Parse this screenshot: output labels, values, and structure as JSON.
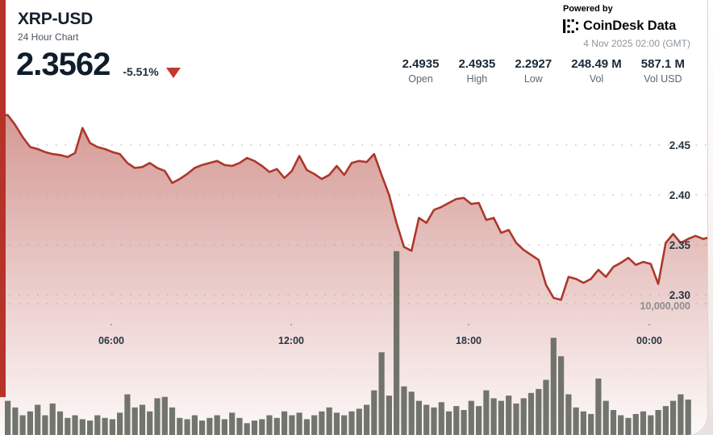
{
  "header": {
    "symbol": "XRP-USD",
    "subtitle": "24 Hour Chart",
    "price": "2.3562",
    "change_pct": "-5.51%",
    "direction": "down"
  },
  "branding": {
    "powered_by": "Powered by",
    "brand_name": "CoinDesk Data",
    "timestamp": "4 Nov 2025 02:00 (GMT)"
  },
  "stats": [
    {
      "value": "2.4935",
      "label": "Open"
    },
    {
      "value": "2.4935",
      "label": "High"
    },
    {
      "value": "2.2927",
      "label": "Low"
    },
    {
      "value": "248.49 M",
      "label": "Vol"
    },
    {
      "value": "587.1 M",
      "label": "Vol USD"
    }
  ],
  "chart_data": {
    "type": "area",
    "subtype": "price-line-with-volume-bars",
    "title": "XRP-USD 24 Hour Chart",
    "price_axis": {
      "tick_labels": [
        "2.45",
        "2.40",
        "2.35",
        "2.30"
      ],
      "tick_values": [
        2.45,
        2.4,
        2.35,
        2.3
      ],
      "side": "right",
      "ylim": [
        2.28,
        2.5
      ]
    },
    "volume_axis": {
      "gridline_label": "10,000,000",
      "gridline_value_m": 10
    },
    "time_ticks": [
      "06:00",
      "12:00",
      "18:00",
      "00:00"
    ],
    "grid": "dotted-horizontal",
    "interval_minutes": 15,
    "prices": [
      2.48,
      2.47,
      2.458,
      2.448,
      2.446,
      2.443,
      2.441,
      2.44,
      2.438,
      2.442,
      2.467,
      2.452,
      2.448,
      2.446,
      2.443,
      2.441,
      2.432,
      2.427,
      2.428,
      2.432,
      2.427,
      2.424,
      2.412,
      2.416,
      2.421,
      2.427,
      2.43,
      2.432,
      2.434,
      2.43,
      2.429,
      2.432,
      2.437,
      2.434,
      2.429,
      2.423,
      2.426,
      2.417,
      2.424,
      2.439,
      2.425,
      2.421,
      2.416,
      2.42,
      2.429,
      2.42,
      2.432,
      2.434,
      2.433,
      2.441,
      2.42,
      2.4,
      2.372,
      2.348,
      2.344,
      2.377,
      2.372,
      2.385,
      2.388,
      2.392,
      2.396,
      2.397,
      2.391,
      2.392,
      2.375,
      2.377,
      2.362,
      2.365,
      2.352,
      2.345,
      2.34,
      2.335,
      2.31,
      2.297,
      2.295,
      2.318,
      2.316,
      2.312,
      2.316,
      2.325,
      2.318,
      2.328,
      2.332,
      2.337,
      2.33,
      2.333,
      2.331,
      2.311,
      2.352,
      2.361,
      2.352,
      2.356,
      2.359,
      2.356,
      2.357
    ],
    "volumes_millions": [
      2.6,
      2.1,
      1.5,
      1.8,
      2.3,
      1.5,
      2.4,
      1.8,
      1.3,
      1.5,
      1.2,
      1.1,
      1.5,
      1.3,
      1.2,
      1.7,
      3.1,
      2.1,
      2.3,
      1.8,
      2.8,
      2.9,
      2.1,
      1.3,
      1.2,
      1.5,
      1.1,
      1.3,
      1.5,
      1.2,
      1.7,
      1.3,
      0.9,
      1.1,
      1.2,
      1.5,
      1.3,
      1.8,
      1.5,
      1.7,
      1.2,
      1.5,
      1.8,
      2.1,
      1.7,
      1.5,
      1.8,
      2.0,
      2.3,
      3.4,
      6.3,
      3.0,
      14.0,
      3.7,
      3.3,
      2.6,
      2.3,
      2.1,
      2.5,
      1.8,
      2.2,
      1.9,
      2.6,
      2.2,
      3.4,
      2.8,
      2.6,
      3.0,
      2.4,
      2.8,
      3.2,
      3.5,
      4.2,
      7.4,
      6.0,
      3.1,
      2.1,
      1.8,
      1.6,
      4.3,
      2.6,
      1.9,
      1.5,
      1.3,
      1.6,
      1.8,
      1.5,
      1.9,
      2.2,
      2.6,
      3.1,
      2.7,
      2.3,
      2.8,
      3.3
    ],
    "colors": {
      "line": "#ad372c",
      "area_top": "rgba(171,51,41,0.50)",
      "area_bottom": "rgba(171,51,41,0.03)",
      "volume_bar": "#5e635a",
      "grid_dot": "#a89a96",
      "axis_label": "#273645",
      "volume_label": "#8d8d8d",
      "accent_strip": "#b63329",
      "down_triangle": "#c4392d"
    }
  }
}
